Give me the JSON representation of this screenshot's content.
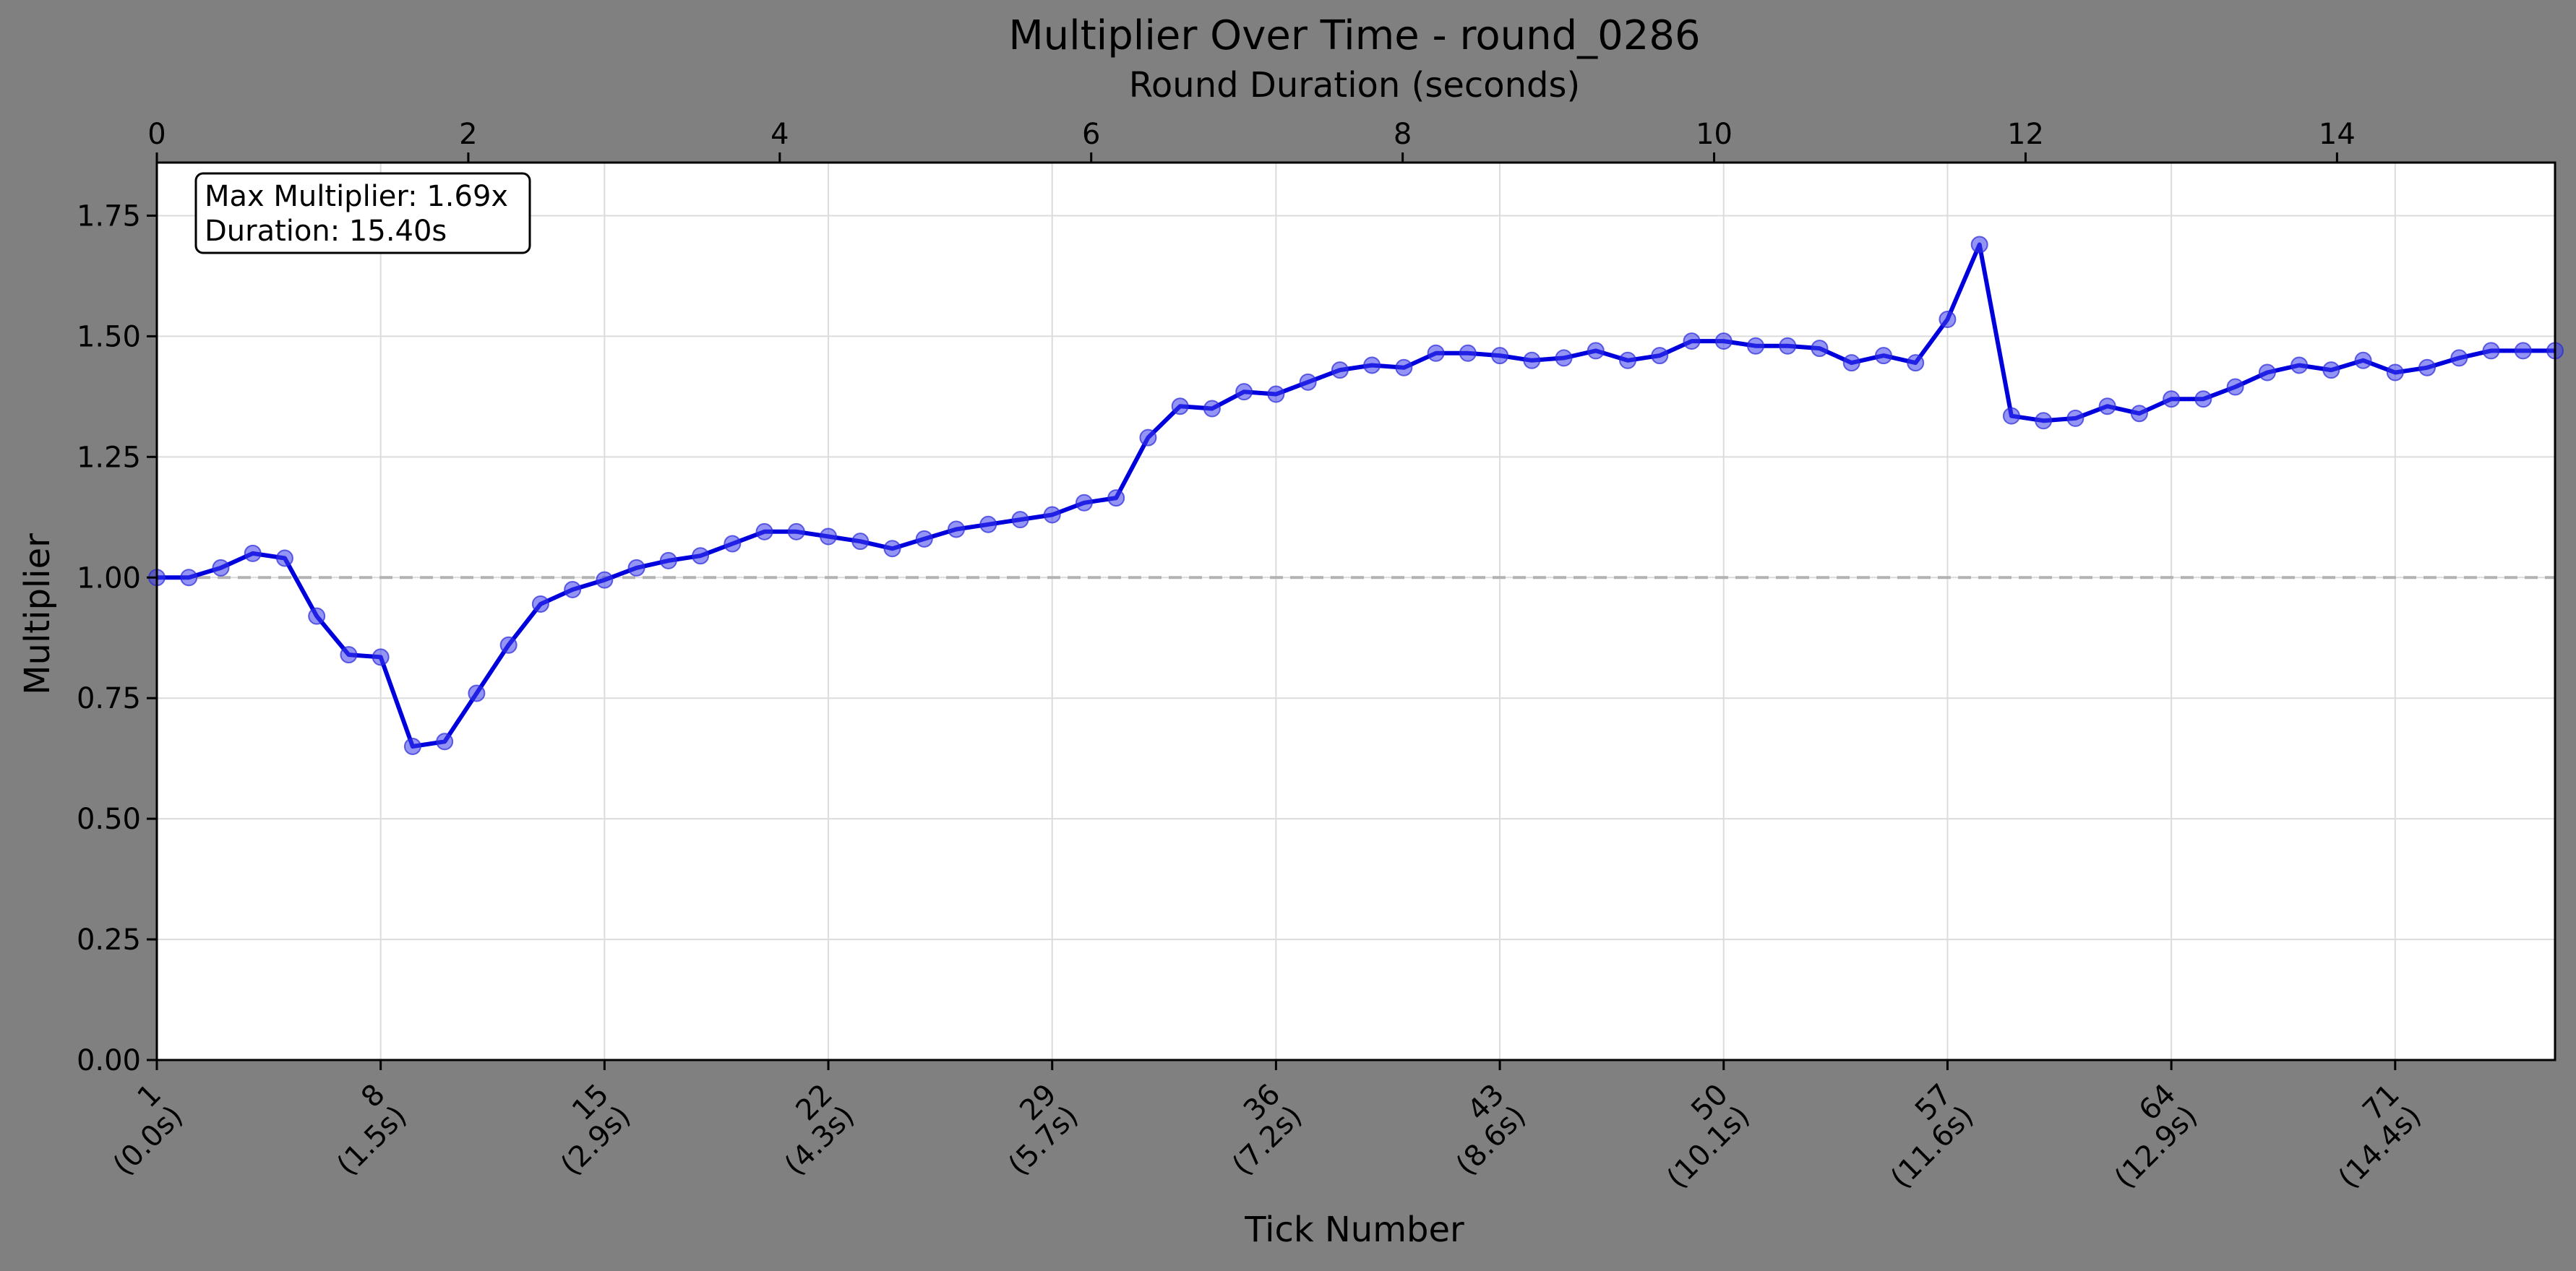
{
  "chart_data": {
    "type": "line",
    "title": "Multiplier Over Time - round_0286",
    "xlabel": "Tick Number",
    "ylabel": "Multiplier",
    "x2label": "Round Duration (seconds)",
    "xlim": [
      1,
      76
    ],
    "ylim": [
      0,
      1.86
    ],
    "x2lim": [
      0,
      15.4
    ],
    "yticks": [
      0,
      0.25,
      0.5,
      0.75,
      1.0,
      1.25,
      1.5,
      1.75
    ],
    "ytick_labels": [
      "0.00",
      "0.25",
      "0.50",
      "0.75",
      "1.00",
      "1.25",
      "1.50",
      "1.75"
    ],
    "xticks": [
      1,
      8,
      15,
      22,
      29,
      36,
      43,
      50,
      57,
      64,
      71
    ],
    "xtick_labels": [
      [
        "1",
        "(0.0s)"
      ],
      [
        "8",
        "(1.5s)"
      ],
      [
        "15",
        "(2.9s)"
      ],
      [
        "22",
        "(4.3s)"
      ],
      [
        "29",
        "(5.7s)"
      ],
      [
        "36",
        "(7.2s)"
      ],
      [
        "43",
        "(8.6s)"
      ],
      [
        "50",
        "(10.1s)"
      ],
      [
        "57",
        "(11.6s)"
      ],
      [
        "64",
        "(12.9s)"
      ],
      [
        "71",
        "(14.4s)"
      ]
    ],
    "x2ticks": [
      0,
      2,
      4,
      6,
      8,
      10,
      12,
      14
    ],
    "x2tick_labels": [
      "0",
      "2",
      "4",
      "6",
      "8",
      "10",
      "12",
      "14"
    ],
    "grid": true,
    "reference_line": 1.0,
    "annotation": [
      "Max Multiplier: 1.69x",
      "Duration: 15.40s"
    ],
    "series": [
      {
        "color": "#0000dd",
        "x": [
          1,
          2,
          3,
          4,
          5,
          6,
          7,
          8,
          9,
          10,
          11,
          12,
          13,
          14,
          15,
          16,
          17,
          18,
          19,
          20,
          21,
          22,
          23,
          24,
          25,
          26,
          27,
          28,
          29,
          30,
          31,
          32,
          33,
          34,
          35,
          36,
          37,
          38,
          39,
          40,
          41,
          42,
          43,
          44,
          45,
          46,
          47,
          48,
          49,
          50,
          51,
          52,
          53,
          54,
          55,
          56,
          57,
          58,
          59,
          60,
          61,
          62,
          63,
          64,
          65,
          66,
          67,
          68,
          69,
          70,
          71,
          72,
          73,
          74,
          75,
          76
        ],
        "values": [
          1.0,
          1.0,
          1.02,
          1.05,
          1.04,
          0.92,
          0.84,
          0.835,
          0.65,
          0.66,
          0.76,
          0.86,
          0.945,
          0.975,
          0.995,
          1.02,
          1.035,
          1.045,
          1.07,
          1.095,
          1.095,
          1.085,
          1.075,
          1.06,
          1.08,
          1.1,
          1.11,
          1.12,
          1.13,
          1.155,
          1.165,
          1.29,
          1.355,
          1.35,
          1.385,
          1.38,
          1.405,
          1.43,
          1.44,
          1.435,
          1.465,
          1.465,
          1.46,
          1.45,
          1.455,
          1.47,
          1.45,
          1.46,
          1.49,
          1.49,
          1.48,
          1.48,
          1.475,
          1.445,
          1.46,
          1.445,
          1.535,
          1.69,
          1.335,
          1.325,
          1.33,
          1.355,
          1.34,
          1.37,
          1.37,
          1.395,
          1.425,
          1.44,
          1.43,
          1.45,
          1.425,
          1.435,
          1.455,
          1.47,
          1.47,
          1.47
        ]
      }
    ]
  }
}
